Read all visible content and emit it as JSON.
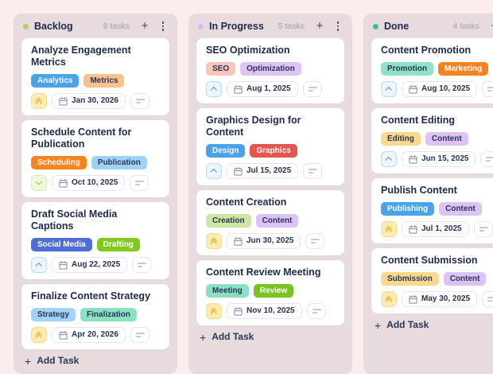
{
  "page": {
    "background": "#fcecec",
    "column_background": "#e7dbde"
  },
  "icons": {
    "plus": "+",
    "kebab": "more-vertical",
    "calendar": "calendar",
    "notes": "description-lines"
  },
  "priority_styles": {
    "urgent": {
      "bg": "#fcecb2",
      "border": "#f5dc8c",
      "color": "#e2a713"
    },
    "medium": {
      "bg": "#edf5fd",
      "border": "#bddaf6",
      "color": "#4090e2"
    },
    "low": {
      "bg": "#eff7e0",
      "border": "#d2ecaa",
      "color": "#8cc63d"
    }
  },
  "board": {
    "columns": [
      {
        "name": "Backlog",
        "dot_color": "#a9d45f",
        "count_label": "8 tasks",
        "add_task_label": "Add Task",
        "cards": [
          {
            "title": "Analyze Engagement Metrics",
            "tags": [
              {
                "label": "Analytics",
                "bg": "#4aa3e8",
                "fg": "#ffffff"
              },
              {
                "label": "Metrics",
                "bg": "#f8c28d",
                "fg": "#2a3458"
              }
            ],
            "priority": "urgent",
            "due_date": "Jan 30, 2026"
          },
          {
            "title": "Schedule Content for Publication",
            "tags": [
              {
                "label": "Scheduling",
                "bg": "#f9831f",
                "fg": "#ffffff"
              },
              {
                "label": "Publication",
                "bg": "#9fd2f7",
                "fg": "#2a3458"
              }
            ],
            "priority": "low",
            "due_date": "Oct 10, 2025"
          },
          {
            "title": "Draft Social Media Captions",
            "tags": [
              {
                "label": "Social Media",
                "bg": "#4d6ed9",
                "fg": "#ffffff"
              },
              {
                "label": "Drafting",
                "bg": "#82c91e",
                "fg": "#ffffff"
              }
            ],
            "priority": "medium",
            "due_date": "Aug 22, 2025"
          },
          {
            "title": "Finalize Content Strategy",
            "tags": [
              {
                "label": "Strategy",
                "bg": "#a2d3f6",
                "fg": "#2a3458"
              },
              {
                "label": "Finalization",
                "bg": "#8be2c0",
                "fg": "#2a3458"
              }
            ],
            "priority": "urgent",
            "due_date": "Apr 20, 2026"
          }
        ]
      },
      {
        "name": "In Progress",
        "dot_color": "#d9b8f5",
        "count_label": "5 tasks",
        "add_task_label": "Add Task",
        "cards": [
          {
            "title": "SEO Optimization",
            "tags": [
              {
                "label": "SEO",
                "bg": "#f9c6b9",
                "fg": "#2a3458"
              },
              {
                "label": "Optimization",
                "bg": "#ddc3f7",
                "fg": "#2a3458"
              }
            ],
            "priority": "medium",
            "due_date": "Aug 1, 2025"
          },
          {
            "title": "Graphics Design for Content",
            "tags": [
              {
                "label": "Design",
                "bg": "#4aa3e8",
                "fg": "#ffffff"
              },
              {
                "label": "Graphics",
                "bg": "#e7564e",
                "fg": "#ffffff"
              }
            ],
            "priority": "medium",
            "due_date": "Jul 15, 2025"
          },
          {
            "title": "Content Creation",
            "tags": [
              {
                "label": "Creation",
                "bg": "#cde6a1",
                "fg": "#2a3458"
              },
              {
                "label": "Content",
                "bg": "#dcc2f7",
                "fg": "#2a3458"
              }
            ],
            "priority": "urgent",
            "due_date": "Jun 30, 2025"
          },
          {
            "title": "Content Review Meeting",
            "tags": [
              {
                "label": "Meeting",
                "bg": "#8ce0c2",
                "fg": "#2a3458"
              },
              {
                "label": "Review",
                "bg": "#76c41d",
                "fg": "#ffffff"
              }
            ],
            "priority": "urgent",
            "due_date": "Nov 10, 2025"
          }
        ]
      },
      {
        "name": "Done",
        "dot_color": "#35c28f",
        "count_label": "4 tasks",
        "add_task_label": "Add Task",
        "cards": [
          {
            "title": "Content Promotion",
            "tags": [
              {
                "label": "Promotion",
                "bg": "#90e2c4",
                "fg": "#2a3458"
              },
              {
                "label": "Marketing",
                "bg": "#f9821f",
                "fg": "#ffffff"
              }
            ],
            "priority": "medium",
            "due_date": "Aug 10, 2025"
          },
          {
            "title": "Content Editing",
            "tags": [
              {
                "label": "Editing",
                "bg": "#fad98d",
                "fg": "#2a3458"
              },
              {
                "label": "Content",
                "bg": "#dcc2f7",
                "fg": "#2a3458"
              }
            ],
            "priority": "medium",
            "due_date": "Jun 15, 2025"
          },
          {
            "title": "Publish Content",
            "tags": [
              {
                "label": "Publishing",
                "bg": "#47a3ea",
                "fg": "#ffffff"
              },
              {
                "label": "Content",
                "bg": "#dcc2f7",
                "fg": "#2a3458"
              }
            ],
            "priority": "urgent",
            "due_date": "Jul 1, 2025"
          },
          {
            "title": "Content Submission",
            "tags": [
              {
                "label": "Submission",
                "bg": "#fad98d",
                "fg": "#2a3458"
              },
              {
                "label": "Content",
                "bg": "#dcc2f7",
                "fg": "#2a3458"
              }
            ],
            "priority": "urgent",
            "due_date": "May 30, 2025"
          }
        ]
      }
    ]
  }
}
